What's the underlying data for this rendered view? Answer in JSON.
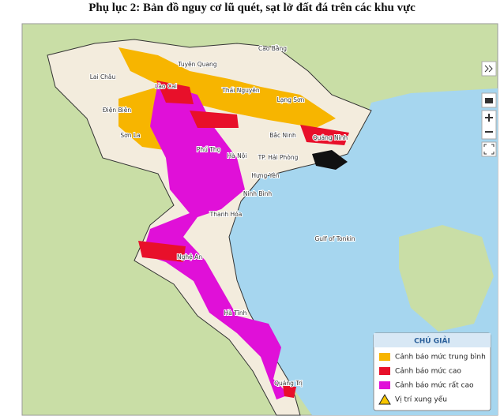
{
  "title": "Phụ lục 2: Bản đồ nguy cơ lũ quét, sạt lở đất đá trên các khu vực",
  "places": [
    "Lai Châu",
    "Tuyên Quang",
    "Cao Bằng",
    "Lào Cai",
    "Thái Nguyên",
    "Lạng Sơn",
    "Điện Biên",
    "Sơn La",
    "Bắc Ninh",
    "Quảng Ninh",
    "Phú Thọ",
    "Hà Nội",
    "TP. Hải Phòng",
    "Hưng Yên",
    "Ninh Bình",
    "Thanh Hóa",
    "Gulf of Tonkin",
    "Nghệ An",
    "Hà Tĩnh",
    "Quảng Trị"
  ],
  "legend": {
    "title": "CHÚ GIẢI",
    "items": [
      {
        "label": "Cảnh báo mức trung bình",
        "color": "#f7b500"
      },
      {
        "label": "Cảnh báo mức cao",
        "color": "#e8102a"
      },
      {
        "label": "Cảnh báo mức rất cao",
        "color": "#e010d8"
      },
      {
        "label": "Vị trí xung yếu"
      }
    ]
  }
}
